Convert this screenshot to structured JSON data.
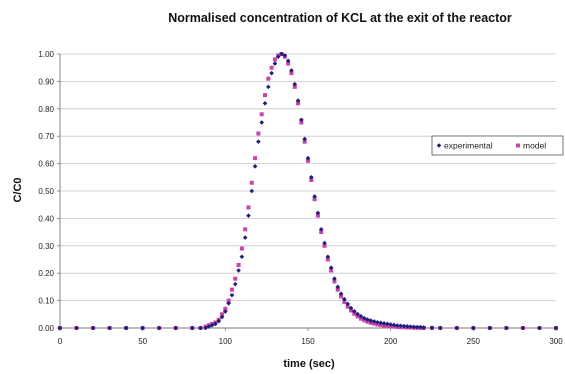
{
  "chart_data": {
    "type": "scatter",
    "title": "Normalised concentration of KCL at the exit of the reactor",
    "xlabel": "time (sec)",
    "ylabel": "C/C0",
    "xlim": [
      0,
      300
    ],
    "ylim": [
      0,
      1.0
    ],
    "x_ticks": [
      "0",
      "50",
      "100",
      "150",
      "200",
      "250",
      "300"
    ],
    "y_ticks": [
      "0.00",
      "0.10",
      "0.20",
      "0.30",
      "0.40",
      "0.50",
      "0.60",
      "0.70",
      "0.80",
      "0.90",
      "1.00"
    ],
    "grid": "horizontal",
    "legend_position": "right",
    "series": [
      {
        "name": "experimental",
        "marker": "diamond",
        "color": "#1f1f7a",
        "x": [
          0,
          10,
          20,
          30,
          40,
          50,
          60,
          70,
          80,
          85,
          88,
          90,
          92,
          94,
          96,
          98,
          100,
          102,
          104,
          106,
          108,
          110,
          112,
          114,
          116,
          118,
          120,
          122,
          124,
          126,
          128,
          130,
          132,
          134,
          136,
          138,
          140,
          142,
          144,
          146,
          148,
          150,
          152,
          154,
          156,
          158,
          160,
          162,
          164,
          166,
          168,
          170,
          172,
          174,
          176,
          178,
          180,
          182,
          184,
          186,
          188,
          190,
          192,
          194,
          196,
          198,
          200,
          202,
          204,
          206,
          208,
          210,
          212,
          214,
          216,
          218,
          220,
          225,
          230,
          240,
          250,
          260,
          270,
          280,
          290,
          300
        ],
        "y": [
          0,
          0,
          0,
          0,
          0,
          0,
          0,
          0,
          0,
          0,
          0,
          0.005,
          0.01,
          0.015,
          0.025,
          0.04,
          0.06,
          0.09,
          0.12,
          0.16,
          0.21,
          0.26,
          0.33,
          0.41,
          0.5,
          0.59,
          0.68,
          0.75,
          0.82,
          0.88,
          0.93,
          0.965,
          0.99,
          1.0,
          0.995,
          0.975,
          0.94,
          0.89,
          0.83,
          0.76,
          0.69,
          0.62,
          0.55,
          0.48,
          0.42,
          0.36,
          0.31,
          0.26,
          0.22,
          0.18,
          0.15,
          0.125,
          0.105,
          0.088,
          0.073,
          0.061,
          0.051,
          0.043,
          0.036,
          0.031,
          0.027,
          0.024,
          0.021,
          0.019,
          0.017,
          0.015,
          0.013,
          0.011,
          0.009,
          0.008,
          0.007,
          0.006,
          0.005,
          0.004,
          0.003,
          0.003,
          0.002,
          0.001,
          0,
          0,
          0,
          0,
          0,
          0,
          0,
          0
        ]
      },
      {
        "name": "model",
        "marker": "square",
        "color": "#cc44aa",
        "x": [
          0,
          10,
          20,
          30,
          40,
          50,
          60,
          70,
          80,
          85,
          88,
          90,
          92,
          94,
          96,
          98,
          100,
          102,
          104,
          106,
          108,
          110,
          112,
          114,
          116,
          118,
          120,
          122,
          124,
          126,
          128,
          130,
          132,
          134,
          136,
          138,
          140,
          142,
          144,
          146,
          148,
          150,
          152,
          154,
          156,
          158,
          160,
          162,
          164,
          166,
          168,
          170,
          172,
          174,
          176,
          178,
          180,
          182,
          184,
          186,
          188,
          190,
          192,
          194,
          196,
          198,
          200,
          202,
          204,
          206,
          208,
          210,
          212,
          214,
          216,
          218,
          220,
          225,
          230,
          240,
          250,
          260,
          270,
          280,
          290,
          300
        ],
        "y": [
          0,
          0,
          0,
          0,
          0,
          0,
          0,
          0,
          0,
          0,
          0.005,
          0.01,
          0.015,
          0.02,
          0.03,
          0.05,
          0.07,
          0.1,
          0.14,
          0.18,
          0.23,
          0.29,
          0.36,
          0.44,
          0.53,
          0.62,
          0.71,
          0.78,
          0.85,
          0.91,
          0.95,
          0.98,
          0.995,
          1.0,
          0.99,
          0.965,
          0.93,
          0.88,
          0.82,
          0.75,
          0.68,
          0.61,
          0.54,
          0.47,
          0.41,
          0.35,
          0.3,
          0.25,
          0.21,
          0.17,
          0.14,
          0.115,
          0.095,
          0.078,
          0.064,
          0.052,
          0.042,
          0.034,
          0.028,
          0.023,
          0.019,
          0.016,
          0.013,
          0.011,
          0.009,
          0.007,
          0.006,
          0.005,
          0.004,
          0.003,
          0.003,
          0.002,
          0.002,
          0.001,
          0.001,
          0.001,
          0,
          0,
          0,
          0,
          0,
          0,
          0,
          0,
          0,
          0
        ]
      }
    ]
  }
}
